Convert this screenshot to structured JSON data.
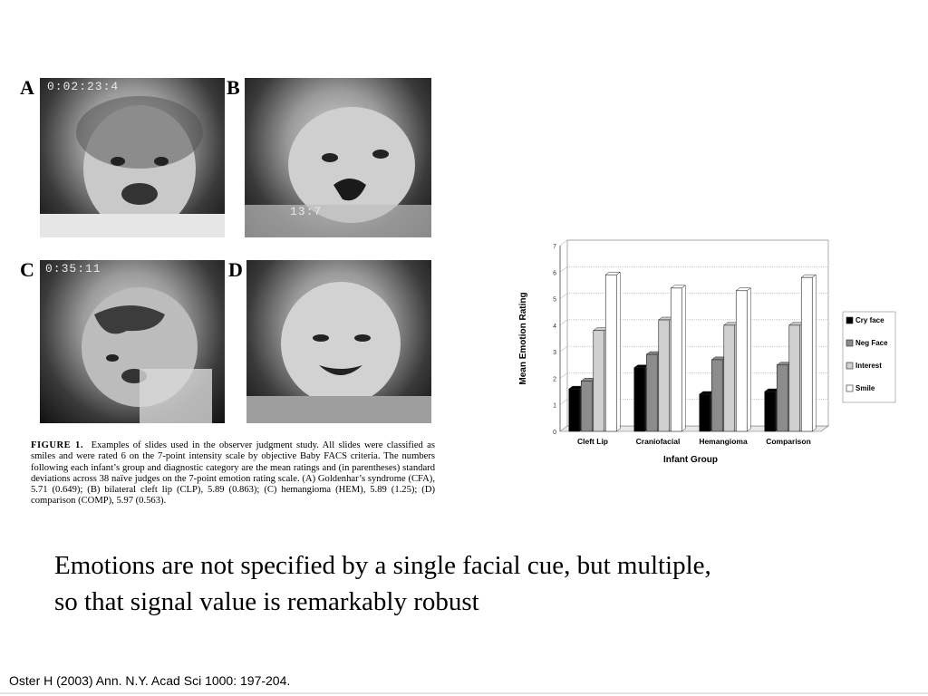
{
  "figure": {
    "panels": [
      {
        "letter": "A",
        "timecode": "0:02:23:4"
      },
      {
        "letter": "B",
        "timecode": "13:7"
      },
      {
        "letter": "C",
        "timecode": "0:35:11"
      },
      {
        "letter": "D",
        "timecode": ""
      }
    ],
    "caption_label": "FIGURE 1.",
    "caption_text": "Examples of slides used in the observer judgment study. All slides were classified as smiles and were rated 6 on the 7-point intensity scale by objective Baby FACS criteria. The numbers following each infant’s group and diagnostic category are the mean ratings and (in parentheses) standard deviations across 38 naïve judges on the 7-point emotion rating scale. (A) Goldenhar’s syndrome (CFA), 5.71 (0.649); (B) bilateral cleft lip (CLP), 5.89 (0.863); (C) hemangioma (HEM), 5.89 (1.25); (D) comparison (COMP), 5.97 (0.563)."
  },
  "chart_data": {
    "type": "bar",
    "title": "",
    "xlabel": "Infant Group",
    "ylabel": "Mean Emotion Rating",
    "ylim": [
      0,
      7
    ],
    "yticks": [
      "0",
      "1",
      "2",
      "3",
      "4",
      "5",
      "6",
      "7"
    ],
    "categories": [
      "Cleft Lip",
      "Craniofacial",
      "Hemangioma",
      "Comparison"
    ],
    "series": [
      {
        "name": "Cry face",
        "values": [
          1.6,
          2.4,
          1.4,
          1.5
        ],
        "color": "#000000"
      },
      {
        "name": "Neg Face",
        "values": [
          1.9,
          2.9,
          2.7,
          2.5
        ],
        "color": "#8c8c8c"
      },
      {
        "name": "Interest",
        "values": [
          3.8,
          4.2,
          4.0,
          4.0
        ],
        "color": "#cfcfcf"
      },
      {
        "name": "Smile",
        "values": [
          5.9,
          5.4,
          5.3,
          5.8
        ],
        "color": "#ffffff"
      }
    ],
    "grid": true,
    "legend_position": "right"
  },
  "slide": {
    "body_line1": "Emotions are not specified by a single facial cue, but multiple,",
    "body_line2": "so that signal value is remarkably robust",
    "citation": "Oster H (2003) Ann. N.Y. Acad Sci 1000: 197-204."
  }
}
